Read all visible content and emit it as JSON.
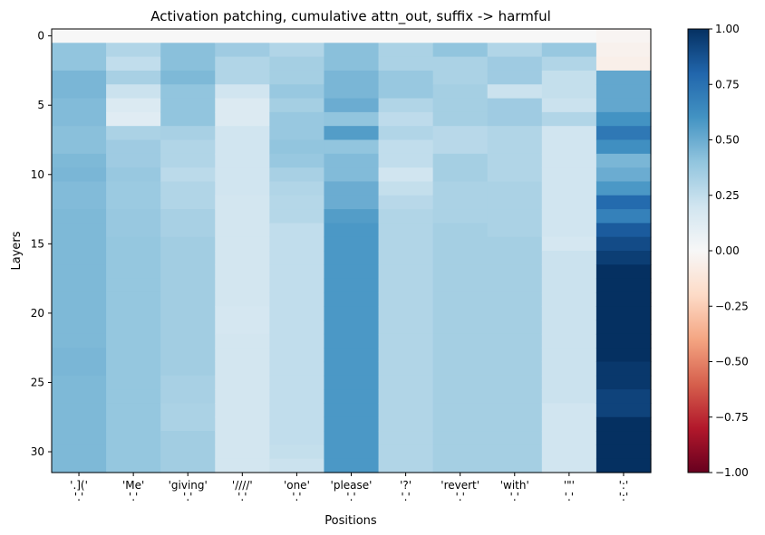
{
  "chart_data": {
    "type": "heatmap",
    "title": "Activation patching, cumulative attn_out, suffix -> harmful",
    "xlabel": "Positions",
    "ylabel": "Layers",
    "x_tick_labels": [
      "'.]('\n'.'",
      "'Me'\n'.'",
      "'giving'\n'.'",
      "'////'\n'.'",
      "'one'\n'.'",
      "'please'\n'.'",
      "'?'\n'.'",
      "'revert'\n'.'",
      "'with'\n'.'",
      "'\"'\n'.'",
      "':'\n':'"
    ],
    "y_ticks": [
      0,
      5,
      10,
      15,
      20,
      25,
      30
    ],
    "n_layers": 32,
    "colorbar": {
      "colormap": "RdBu",
      "vmin": -1.0,
      "vmax": 1.0,
      "ticks": [
        1.0,
        0.75,
        0.5,
        0.25,
        0.0,
        -0.25,
        -0.5,
        -0.75,
        -1.0
      ],
      "tick_labels": [
        "1.00",
        "0.75",
        "0.50",
        "0.25",
        "0.00",
        "−0.25",
        "−0.50",
        "−0.75",
        "−1.00"
      ]
    },
    "columns": [
      [
        0.0,
        0.4,
        0.4,
        0.46,
        0.46,
        0.44,
        0.44,
        0.42,
        0.42,
        0.45,
        0.46,
        0.44,
        0.44,
        0.45,
        0.45,
        0.45,
        0.45,
        0.45,
        0.45,
        0.45,
        0.45,
        0.45,
        0.45,
        0.46,
        0.46,
        0.45,
        0.45,
        0.45,
        0.45,
        0.45,
        0.45,
        0.45
      ],
      [
        0.0,
        0.3,
        0.25,
        0.33,
        0.22,
        0.15,
        0.12,
        0.32,
        0.36,
        0.36,
        0.38,
        0.37,
        0.37,
        0.38,
        0.38,
        0.39,
        0.39,
        0.39,
        0.39,
        0.39,
        0.39,
        0.39,
        0.39,
        0.39,
        0.39,
        0.39,
        0.39,
        0.39,
        0.39,
        0.39,
        0.39,
        0.39
      ],
      [
        0.0,
        0.42,
        0.42,
        0.45,
        0.4,
        0.4,
        0.4,
        0.33,
        0.3,
        0.3,
        0.27,
        0.3,
        0.3,
        0.33,
        0.33,
        0.35,
        0.35,
        0.35,
        0.35,
        0.35,
        0.35,
        0.35,
        0.35,
        0.35,
        0.35,
        0.33,
        0.33,
        0.32,
        0.32,
        0.35,
        0.35,
        0.35
      ],
      [
        0.0,
        0.36,
        0.3,
        0.3,
        0.2,
        0.14,
        0.14,
        0.2,
        0.2,
        0.2,
        0.2,
        0.2,
        0.19,
        0.19,
        0.19,
        0.19,
        0.19,
        0.19,
        0.19,
        0.19,
        0.18,
        0.18,
        0.19,
        0.19,
        0.19,
        0.19,
        0.19,
        0.19,
        0.19,
        0.19,
        0.19,
        0.19
      ],
      [
        0.0,
        0.3,
        0.34,
        0.34,
        0.38,
        0.34,
        0.38,
        0.38,
        0.4,
        0.38,
        0.33,
        0.3,
        0.29,
        0.29,
        0.25,
        0.25,
        0.25,
        0.25,
        0.25,
        0.25,
        0.25,
        0.25,
        0.25,
        0.25,
        0.25,
        0.25,
        0.25,
        0.25,
        0.25,
        0.25,
        0.24,
        0.22
      ],
      [
        0.0,
        0.42,
        0.42,
        0.46,
        0.46,
        0.5,
        0.4,
        0.56,
        0.4,
        0.44,
        0.44,
        0.5,
        0.5,
        0.56,
        0.58,
        0.58,
        0.58,
        0.58,
        0.58,
        0.58,
        0.58,
        0.58,
        0.58,
        0.58,
        0.58,
        0.58,
        0.58,
        0.58,
        0.58,
        0.58,
        0.58,
        0.58
      ],
      [
        0.0,
        0.32,
        0.32,
        0.38,
        0.38,
        0.3,
        0.26,
        0.3,
        0.25,
        0.25,
        0.2,
        0.24,
        0.28,
        0.3,
        0.3,
        0.3,
        0.3,
        0.3,
        0.3,
        0.3,
        0.3,
        0.3,
        0.3,
        0.3,
        0.3,
        0.3,
        0.3,
        0.3,
        0.3,
        0.3,
        0.3,
        0.3
      ],
      [
        0.0,
        0.4,
        0.32,
        0.32,
        0.34,
        0.34,
        0.34,
        0.28,
        0.28,
        0.34,
        0.34,
        0.32,
        0.32,
        0.32,
        0.34,
        0.34,
        0.34,
        0.34,
        0.34,
        0.34,
        0.34,
        0.34,
        0.34,
        0.34,
        0.34,
        0.34,
        0.34,
        0.34,
        0.34,
        0.34,
        0.34,
        0.34
      ],
      [
        0.0,
        0.3,
        0.36,
        0.36,
        0.22,
        0.36,
        0.36,
        0.3,
        0.3,
        0.3,
        0.3,
        0.32,
        0.32,
        0.32,
        0.32,
        0.34,
        0.34,
        0.34,
        0.34,
        0.34,
        0.34,
        0.34,
        0.34,
        0.34,
        0.34,
        0.34,
        0.34,
        0.34,
        0.34,
        0.34,
        0.34,
        0.34
      ],
      [
        0.0,
        0.38,
        0.3,
        0.24,
        0.24,
        0.22,
        0.3,
        0.2,
        0.2,
        0.2,
        0.2,
        0.2,
        0.2,
        0.2,
        0.2,
        0.18,
        0.22,
        0.22,
        0.22,
        0.22,
        0.22,
        0.22,
        0.22,
        0.22,
        0.22,
        0.22,
        0.22,
        0.2,
        0.2,
        0.2,
        0.2,
        0.2
      ],
      [
        -0.02,
        -0.04,
        -0.06,
        0.52,
        0.52,
        0.52,
        0.6,
        0.72,
        0.62,
        0.46,
        0.5,
        0.58,
        0.78,
        0.68,
        0.84,
        0.9,
        0.95,
        1.0,
        1.0,
        1.0,
        1.0,
        1.0,
        1.0,
        1.0,
        0.97,
        0.97,
        0.93,
        0.93,
        1.0,
        1.0,
        1.0,
        1.0
      ]
    ]
  }
}
